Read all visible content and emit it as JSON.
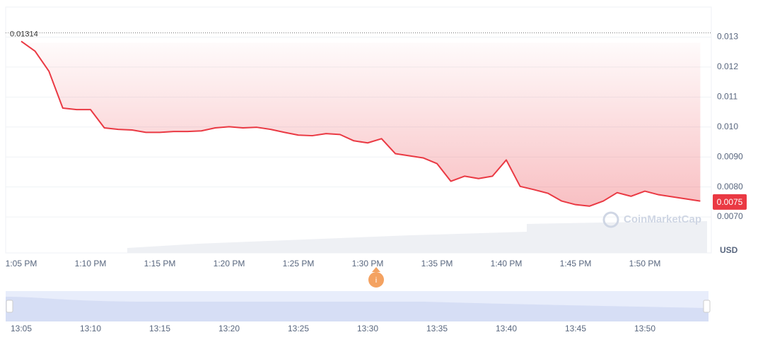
{
  "chart_data": {
    "type": "line",
    "categories": [
      "1:05 PM",
      null,
      null,
      null,
      null,
      "1:10 PM",
      null,
      null,
      null,
      null,
      "1:15 PM",
      null,
      null,
      null,
      null,
      "1:20 PM",
      null,
      null,
      null,
      null,
      "1:25 PM",
      null,
      null,
      null,
      null,
      "1:30 PM",
      null,
      null,
      null,
      null,
      "1:35 PM",
      null,
      null,
      null,
      null,
      "1:40 PM",
      null,
      null,
      null,
      null,
      "1:45 PM",
      null,
      null,
      null,
      null,
      "1:50 PM",
      null,
      null,
      null,
      null
    ],
    "series": [
      {
        "color": "#ea3943",
        "values": [
          0.01286,
          0.01253,
          0.01186,
          0.01063,
          0.01058,
          0.01058,
          0.00997,
          0.00992,
          0.0099,
          0.00982,
          0.00982,
          0.00985,
          0.00985,
          0.00987,
          0.00997,
          0.01001,
          0.00997,
          0.00999,
          0.00992,
          0.00982,
          0.00973,
          0.00971,
          0.00978,
          0.00975,
          0.00954,
          0.00947,
          0.00961,
          0.00911,
          0.00904,
          0.00897,
          0.00878,
          0.00819,
          0.00836,
          0.00828,
          0.00836,
          0.0089,
          0.00802,
          0.00791,
          0.00779,
          0.00753,
          0.00741,
          0.00736,
          0.00753,
          0.00781,
          0.00769,
          0.00786,
          0.00774,
          0.00767,
          0.0076,
          0.00753
        ]
      }
    ],
    "ylim": [
      0.0058,
      0.014
    ],
    "yticks": [
      0.013,
      0.012,
      0.011,
      {
        "value": 0.01,
        "label": "0.010"
      },
      {
        "value": 0.009,
        "label": "0.0090"
      },
      {
        "value": 0.008,
        "label": "0.0080"
      },
      {
        "value": 0.007,
        "label": "0.0070"
      }
    ],
    "y_axis_label": "USD",
    "grid": true,
    "reference_line": {
      "value": 0.01314,
      "label": "0.01314"
    },
    "current_price": {
      "value": 0.0075,
      "label": "0.0075",
      "color": "#ea3943"
    },
    "watermark": "CoinMarketCap",
    "navigator_labels": [
      "13:05",
      "13:10",
      "13:15",
      "13:20",
      "13:25",
      "13:30",
      "13:35",
      "13:40",
      "13:45",
      "13:50"
    ]
  }
}
